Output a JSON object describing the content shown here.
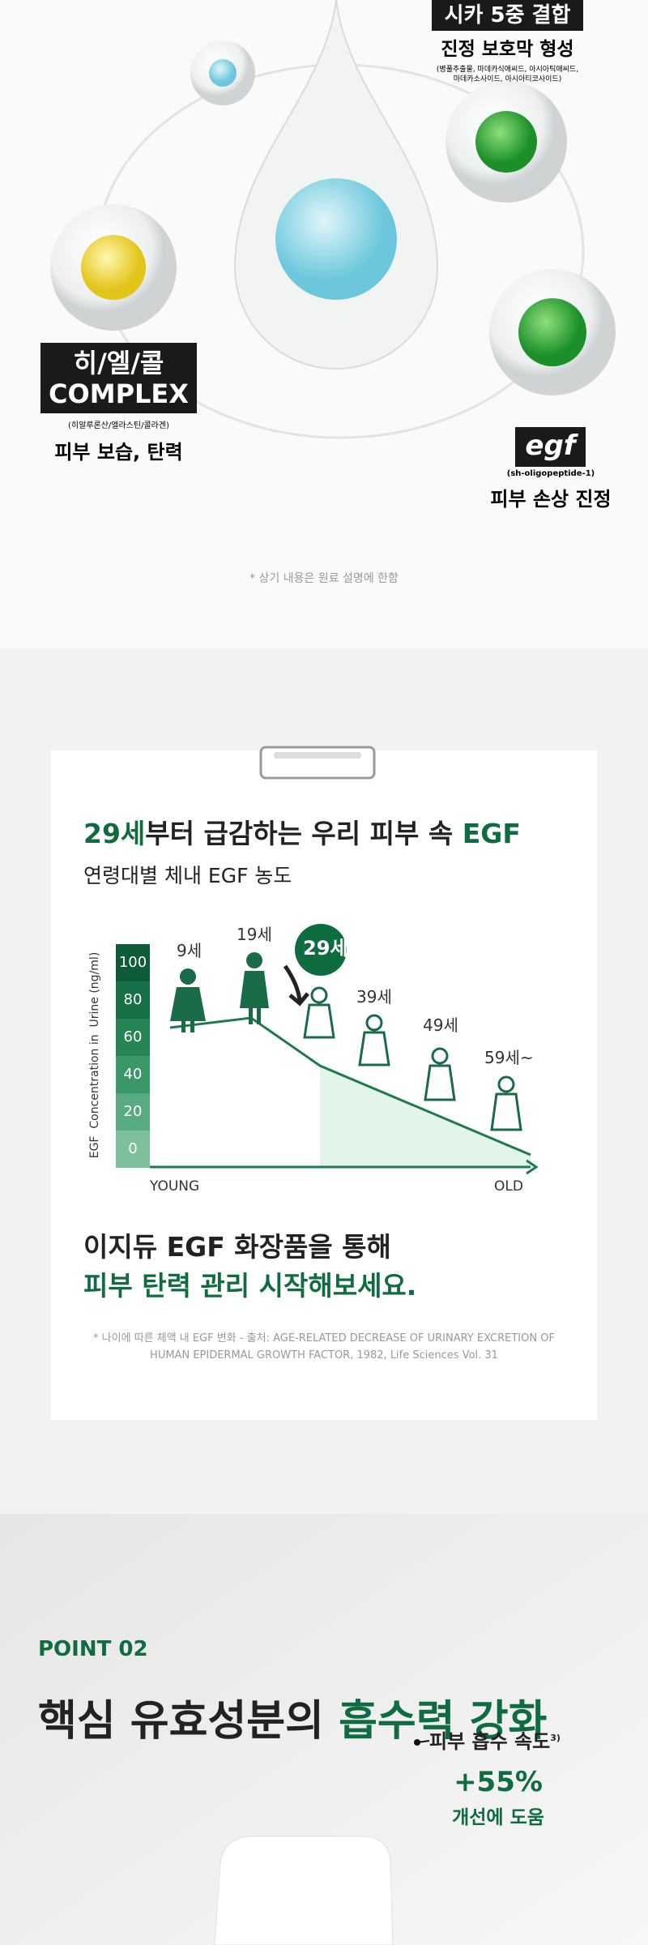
{
  "ingredients": {
    "cica": {
      "badge": "시카 5중 결합",
      "label": "진정 보호막 형성",
      "detail_lines": [
        "(병풀추출물, 마데카식애씨드, 아시아틱애씨드,",
        "마데카소사이드, 아시아티코사이드)"
      ]
    },
    "hec": {
      "badge_lines": [
        "히/엘/콜",
        "COMPLEX"
      ],
      "detail": "(히알루론산/엘라스틴/콜라겐)",
      "label": "피부 보습, 탄력"
    },
    "egf": {
      "badge": "egf",
      "detail": "(sh-oligopeptide-1)",
      "label": "피부 손상 진정"
    },
    "note": "* 상기 내용은 원료 설명에 한함"
  },
  "egf_card": {
    "title_parts": [
      "29세",
      "부터 급감하는 우리 피부 속 ",
      "EGF"
    ],
    "subtitle": "연령대별 체내 EGF 농도",
    "y_axis_title": "EGF  Concentration in  Urine (ng/ml)",
    "y_axis_labels": [
      100,
      80,
      60,
      40,
      20,
      0
    ],
    "ages": [
      "9세",
      "19세",
      "29세",
      "39세",
      "49세",
      "59세~"
    ],
    "x_start": "YOUNG",
    "x_end": "OLD",
    "message_lines": [
      "이지듀 EGF 화장품을 통해",
      "피부 탄력 관리 시작해보세요."
    ],
    "source_lines": [
      "* 나이에 따른 체액 내 EGF 변화 - 출처: AGE-RELATED DECREASE OF URINARY EXCRETION OF",
      "HUMAN EPIDERMAL GROWTH FACTOR, 1982, Life Sciences Vol. 31"
    ]
  },
  "point": {
    "label": "POINT 02",
    "title_parts": [
      "핵심 유효성분의 ",
      "흡수력 강화"
    ],
    "stat_label": "피부 흡수 속도",
    "stat_ref": "3)",
    "stat_value": "+55%",
    "stat_desc": "개선에 도움"
  }
}
